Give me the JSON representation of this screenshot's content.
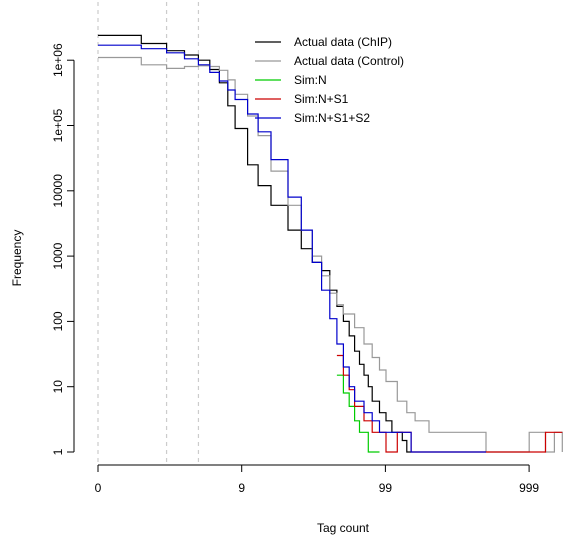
{
  "chart_data": {
    "type": "line",
    "xlabel": "Tag count",
    "ylabel": "Frequency",
    "x_scale": "log(x+1)",
    "y_scale": "log",
    "xlim": [
      0,
      2000
    ],
    "ylim": [
      1,
      2500000
    ],
    "x_ticks": [
      0,
      9,
      99,
      999
    ],
    "x_tick_labels": [
      "0",
      "9",
      "99",
      "999"
    ],
    "y_ticks": [
      1,
      10,
      100,
      1000,
      10000,
      100000,
      1000000
    ],
    "y_tick_labels": [
      "1",
      "10",
      "100",
      "1000",
      "10000",
      "1e+05",
      "1e+06"
    ],
    "reference_lines_x": [
      0,
      2,
      4
    ],
    "legend": {
      "placement": "top-right",
      "entries": [
        {
          "label": "Actual data (ChIP)",
          "color": "#000000"
        },
        {
          "label": "Actual data (Control)",
          "color": "#999999"
        },
        {
          "label": "Sim:N",
          "color": "#00cc00"
        },
        {
          "label": "Sim:N+S1",
          "color": "#cc0000"
        },
        {
          "label": "Sim:N+S1+S2",
          "color": "#0000cc"
        }
      ]
    },
    "series": [
      {
        "name": "Actual data (ChIP)",
        "color": "#000000",
        "x": [
          0,
          1,
          2,
          3,
          4,
          5,
          6,
          7,
          8,
          10,
          12,
          15,
          20,
          25,
          30,
          35,
          40,
          45,
          50,
          55,
          60,
          65,
          70,
          75,
          80,
          90,
          100,
          110,
          120,
          130,
          140,
          150
        ],
        "y": [
          2400000,
          1800000,
          1400000,
          1200000,
          1000000,
          720000,
          450000,
          200000,
          90000,
          25000,
          12000,
          6000,
          2500,
          1300,
          800,
          600,
          300,
          170,
          100,
          60,
          35,
          22,
          15,
          10,
          6,
          4,
          3,
          2,
          2,
          1.5,
          1,
          1
        ]
      },
      {
        "name": "Actual data (Control)",
        "color": "#999999",
        "x": [
          0,
          1,
          2,
          3,
          4,
          5,
          6,
          7,
          8,
          10,
          12,
          15,
          20,
          25,
          30,
          35,
          40,
          45,
          50,
          60,
          70,
          80,
          90,
          100,
          120,
          140,
          160,
          200,
          300,
          500,
          700,
          1000,
          1300,
          1500,
          1700
        ],
        "y": [
          1100000,
          850000,
          750000,
          800000,
          820000,
          800000,
          700000,
          500000,
          300000,
          140000,
          70000,
          20000,
          6000,
          2500,
          1000,
          500,
          270,
          180,
          130,
          80,
          45,
          28,
          18,
          12,
          6,
          4,
          3,
          2,
          2,
          1,
          1,
          2,
          1,
          2,
          1
        ]
      },
      {
        "name": "Sim:N",
        "color": "#00cc00",
        "x": [
          45,
          50,
          55,
          60,
          65,
          70,
          75,
          80,
          85,
          90
        ],
        "y": [
          15,
          8,
          5,
          3,
          2,
          2,
          1,
          1,
          1,
          1
        ]
      },
      {
        "name": "Sim:N+S1",
        "color": "#cc0000",
        "x": [
          45,
          50,
          55,
          60,
          70,
          80,
          90,
          100,
          120,
          150,
          200,
          250,
          300,
          1300,
          1700
        ],
        "y": [
          30,
          15,
          9,
          5,
          3,
          2,
          2,
          1,
          2,
          1,
          1,
          1,
          1,
          2,
          2
        ]
      },
      {
        "name": "Sim:N+S1+S2",
        "color": "#0000cc",
        "x": [
          0,
          1,
          2,
          3,
          4,
          5,
          6,
          7,
          8,
          10,
          12,
          15,
          20,
          25,
          30,
          35,
          40,
          45,
          50,
          55,
          60,
          70,
          80,
          90,
          100,
          120,
          150,
          200,
          300,
          500
        ],
        "y": [
          1700000,
          1500000,
          1300000,
          1050000,
          850000,
          650000,
          480000,
          350000,
          250000,
          150000,
          80000,
          30000,
          8000,
          2500,
          800,
          300,
          110,
          45,
          20,
          10,
          6,
          4,
          3,
          2,
          2,
          2,
          1,
          1,
          1,
          1
        ]
      }
    ]
  }
}
